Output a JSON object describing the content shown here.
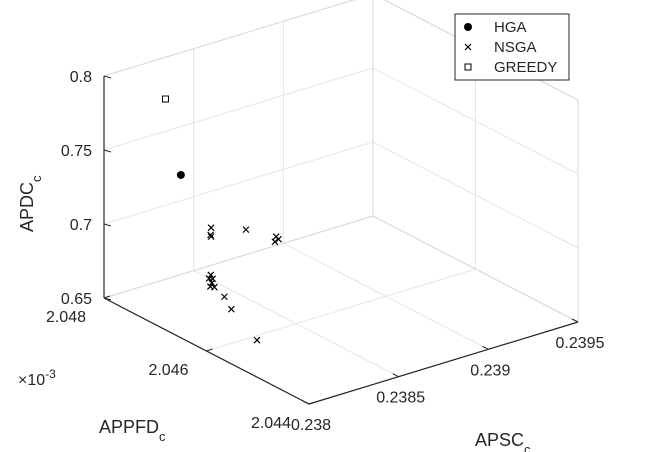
{
  "chart_data": {
    "type": "scatter",
    "title": "",
    "axes": {
      "x": {
        "label_main": "APSC",
        "label_sub": "c",
        "range": [
          0.238,
          0.2395
        ],
        "ticks": [
          "0.238",
          "0.2385",
          "0.239",
          "0.2395"
        ]
      },
      "y": {
        "label_main": "APPFD",
        "label_sub": "c",
        "range": [
          2.044,
          2.048
        ],
        "ticks": [
          "2.044",
          "2.046",
          "2.048"
        ],
        "exponent_prefix": "×10",
        "exponent": "-3"
      },
      "z": {
        "label_main": "APDC",
        "label_sub": "c",
        "range": [
          0.65,
          0.8
        ],
        "ticks": [
          "0.65",
          "0.7",
          "0.75",
          "0.8"
        ]
      }
    },
    "grid": true,
    "box": true,
    "legend_position": "top-right",
    "legend": [
      {
        "label": "HGA",
        "marker": "filled-circle"
      },
      {
        "label": "NSGA",
        "marker": "cross"
      },
      {
        "label": "GREEDY",
        "marker": "open-square"
      }
    ],
    "series": [
      {
        "name": "HGA",
        "marker": "filled-circle",
        "points": [
          {
            "x": 0.238,
            "y": 2.0465,
            "z": 0.76
          }
        ]
      },
      {
        "name": "NSGA",
        "marker": "cross",
        "points": [
          {
            "x": 0.23813,
            "y": 2.04547,
            "z": 0.662
          },
          {
            "x": 0.23815,
            "y": 2.04604,
            "z": 0.672
          },
          {
            "x": 0.23818,
            "y": 2.04628,
            "z": 0.675
          },
          {
            "x": 0.23821,
            "y": 2.04658,
            "z": 0.675
          },
          {
            "x": 0.23825,
            "y": 2.04677,
            "z": 0.673
          },
          {
            "x": 0.23825,
            "y": 2.0468,
            "z": 0.67
          },
          {
            "x": 0.23824,
            "y": 2.04679,
            "z": 0.676
          },
          {
            "x": 0.23826,
            "y": 2.04679,
            "z": 0.675
          },
          {
            "x": 0.23827,
            "y": 2.04686,
            "z": 0.676
          },
          {
            "x": 0.23826,
            "y": 2.04682,
            "z": 0.703
          },
          {
            "x": 0.23826,
            "y": 2.04682,
            "z": 0.709
          },
          {
            "x": 0.23826,
            "y": 2.04683,
            "z": 0.704
          },
          {
            "x": 0.2385,
            "y": 2.04698,
            "z": 0.696
          },
          {
            "x": 0.23881,
            "y": 2.0475,
            "z": 0.667
          },
          {
            "x": 0.23882,
            "y": 2.04751,
            "z": 0.67
          },
          {
            "x": 0.23883,
            "y": 2.0475,
            "z": 0.668
          }
        ]
      },
      {
        "name": "GREEDY",
        "marker": "open-square",
        "points": [
          {
            "x": 0.23816,
            "y": 2.04736,
            "z": 0.79
          }
        ]
      }
    ]
  }
}
